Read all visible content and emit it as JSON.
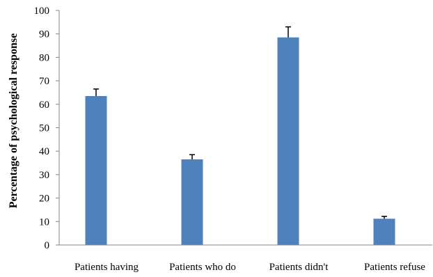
{
  "chart_data": {
    "type": "bar",
    "title": "",
    "xlabel": "",
    "ylabel": "Percentage of psychological response",
    "ylim": [
      0,
      100
    ],
    "yticks": [
      0,
      10,
      20,
      30,
      40,
      50,
      60,
      70,
      80,
      90,
      100
    ],
    "grid": false,
    "legend": "none",
    "categories": [
      "Patients having",
      "Patients who do",
      "Patients didn't",
      "Patients refuse"
    ],
    "values": [
      63.5,
      36.5,
      88.5,
      11.2
    ],
    "error": [
      3,
      2,
      4.5,
      1
    ],
    "colors": {
      "bar": "#4f81bd",
      "axis": "#868686",
      "error": "#000000"
    }
  }
}
